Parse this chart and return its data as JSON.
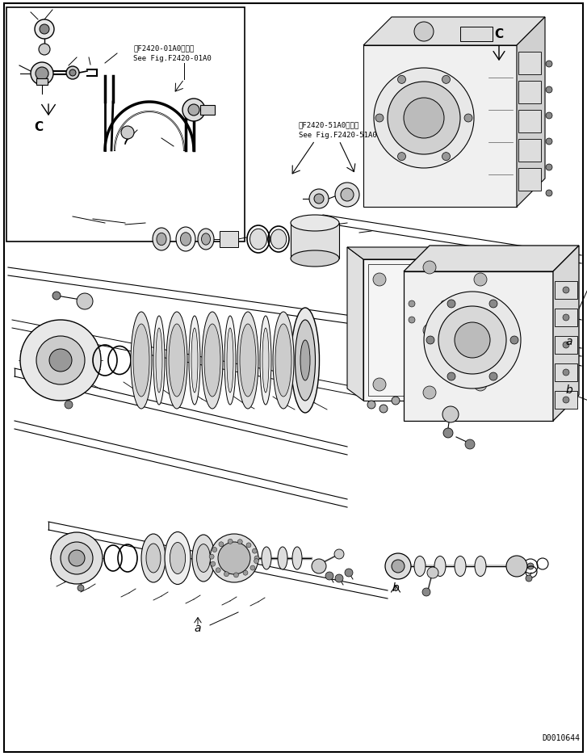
{
  "bg_color": "#ffffff",
  "line_color": "#000000",
  "ref1_line1": "第F2420-01A0图参照",
  "ref1_line2": "See Fig.F2420-01A0",
  "ref2_line1": "第F2420-51A0图参照",
  "ref2_line2": "See Fig.F2420-51A0",
  "part_number": "D0010644",
  "label_C_inset": "C",
  "label_C_main": "C",
  "label_a_bottom": "a",
  "label_b_bottom": "b",
  "label_a_right": "a",
  "label_b_right": "b",
  "fig_w": 7.27,
  "fig_h": 9.37,
  "dpi": 100
}
